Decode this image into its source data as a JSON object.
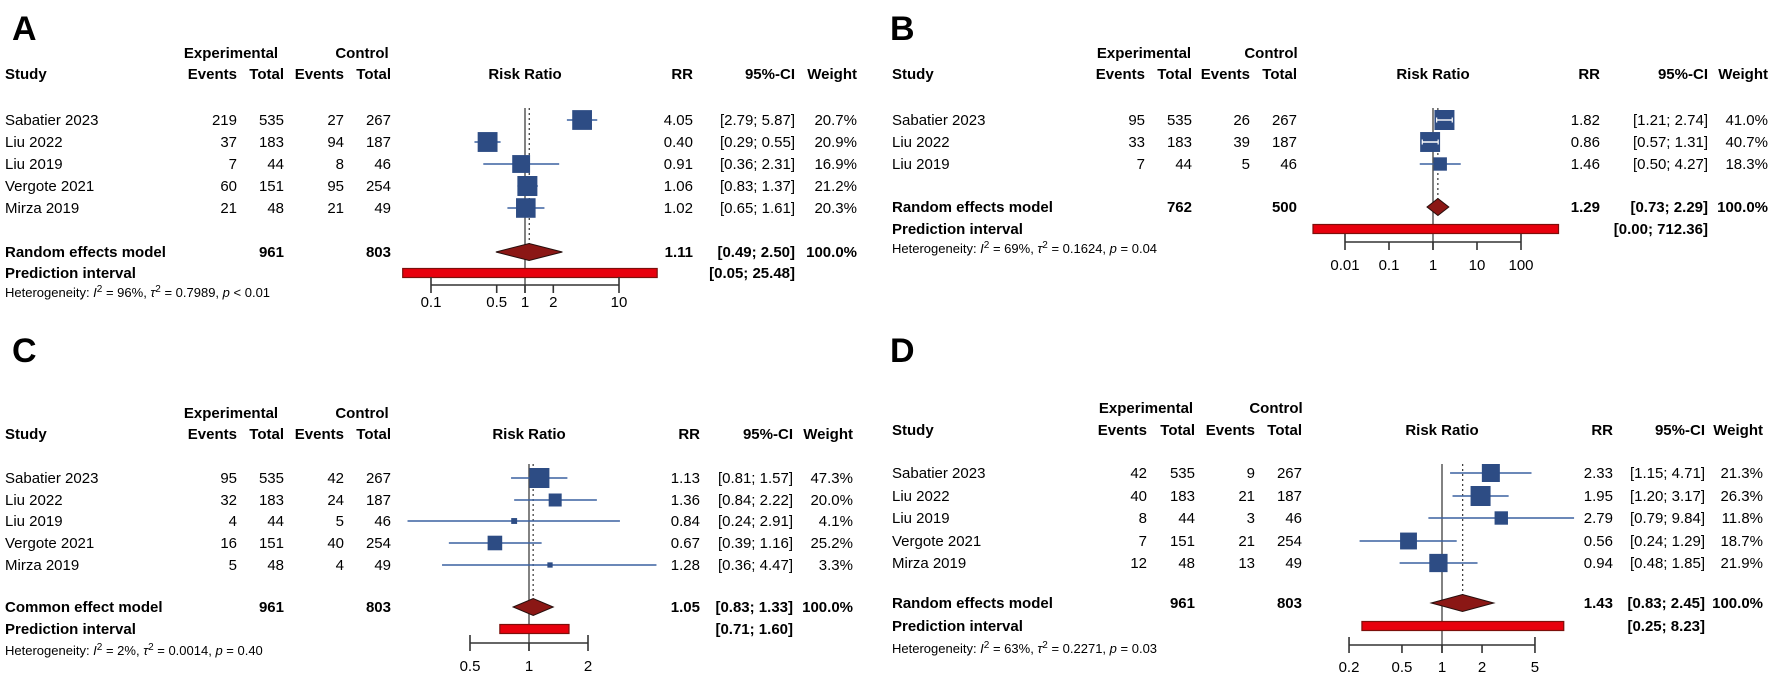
{
  "figure": {
    "background": "#ffffff"
  },
  "colors": {
    "square": "#2d4c84",
    "ci_line": "#3a61a0",
    "inner_ci_line": "#ffffff",
    "diamond_fill": "#8b1715",
    "diamond_stroke": "#260f0d",
    "prediction_fill": "#e8000d",
    "prediction_stroke": "#7c0f0b",
    "null_line": "#4d4d4d",
    "pooled_line": "#333333",
    "axis": "#333333",
    "text": "#000000"
  },
  "chart_data": {
    "type": "forest",
    "effect_measure": "Risk Ratio",
    "headers": {
      "study": "Study",
      "group1": "Experimental",
      "group2": "Control",
      "events": "Events",
      "total": "Total",
      "plot_title": "Risk Ratio",
      "rr": "RR",
      "ci": "95%-CI",
      "weight": "Weight",
      "heterogeneity_prefix": "Heterogeneity:",
      "prediction_label": "Prediction interval"
    },
    "panels": [
      {
        "id": "A",
        "summary_label": "Random effects model",
        "studies": [
          {
            "name": "Sabatier 2023",
            "exp_events": 219,
            "exp_total": 535,
            "ctrl_events": 27,
            "ctrl_total": 267,
            "rr": 4.05,
            "lo": 2.79,
            "hi": 5.87,
            "weight": 20.7
          },
          {
            "name": "Liu 2022",
            "exp_events": 37,
            "exp_total": 183,
            "ctrl_events": 94,
            "ctrl_total": 187,
            "rr": 0.4,
            "lo": 0.29,
            "hi": 0.55,
            "weight": 20.9
          },
          {
            "name": "Liu 2019",
            "exp_events": 7,
            "exp_total": 44,
            "ctrl_events": 8,
            "ctrl_total": 46,
            "rr": 0.91,
            "lo": 0.36,
            "hi": 2.31,
            "weight": 16.9
          },
          {
            "name": "Vergote 2021",
            "exp_events": 60,
            "exp_total": 151,
            "ctrl_events": 95,
            "ctrl_total": 254,
            "rr": 1.06,
            "lo": 0.83,
            "hi": 1.37,
            "weight": 21.2
          },
          {
            "name": "Mirza 2019",
            "exp_events": 21,
            "exp_total": 48,
            "ctrl_events": 21,
            "ctrl_total": 49,
            "rr": 1.02,
            "lo": 0.65,
            "hi": 1.61,
            "weight": 20.3
          }
        ],
        "summary": {
          "exp_total": 961,
          "ctrl_total": 803,
          "rr": 1.11,
          "lo": 0.49,
          "hi": 2.5,
          "weight": 100.0
        },
        "prediction": {
          "lo": 0.05,
          "hi": 25.48
        },
        "heterogeneity": {
          "i2": "96%",
          "tau2": "0.7989",
          "p": "< 0.01"
        },
        "axis_ticks": [
          0.1,
          0.5,
          1,
          2,
          10
        ]
      },
      {
        "id": "B",
        "summary_label": "Random effects model",
        "studies": [
          {
            "name": "Sabatier 2023",
            "exp_events": 95,
            "exp_total": 535,
            "ctrl_events": 26,
            "ctrl_total": 267,
            "rr": 1.82,
            "lo": 1.21,
            "hi": 2.74,
            "weight": 41.0
          },
          {
            "name": "Liu 2022",
            "exp_events": 33,
            "exp_total": 183,
            "ctrl_events": 39,
            "ctrl_total": 187,
            "rr": 0.86,
            "lo": 0.57,
            "hi": 1.31,
            "weight": 40.7
          },
          {
            "name": "Liu 2019",
            "exp_events": 7,
            "exp_total": 44,
            "ctrl_events": 5,
            "ctrl_total": 46,
            "rr": 1.46,
            "lo": 0.5,
            "hi": 4.27,
            "weight": 18.3
          }
        ],
        "summary": {
          "exp_total": 762,
          "ctrl_total": 500,
          "rr": 1.29,
          "lo": 0.73,
          "hi": 2.29,
          "weight": 100.0
        },
        "prediction": {
          "lo": 0.0,
          "hi": 712.36
        },
        "heterogeneity": {
          "i2": "69%",
          "tau2": "0.1624",
          "p": "= 0.04"
        },
        "axis_ticks": [
          0.01,
          0.1,
          1,
          10,
          100
        ]
      },
      {
        "id": "C",
        "summary_label": "Common effect model",
        "studies": [
          {
            "name": "Sabatier 2023",
            "exp_events": 95,
            "exp_total": 535,
            "ctrl_events": 42,
            "ctrl_total": 267,
            "rr": 1.13,
            "lo": 0.81,
            "hi": 1.57,
            "weight": 47.3
          },
          {
            "name": "Liu 2022",
            "exp_events": 32,
            "exp_total": 183,
            "ctrl_events": 24,
            "ctrl_total": 187,
            "rr": 1.36,
            "lo": 0.84,
            "hi": 2.22,
            "weight": 20.0
          },
          {
            "name": "Liu 2019",
            "exp_events": 4,
            "exp_total": 44,
            "ctrl_events": 5,
            "ctrl_total": 46,
            "rr": 0.84,
            "lo": 0.24,
            "hi": 2.91,
            "weight": 4.1
          },
          {
            "name": "Vergote 2021",
            "exp_events": 16,
            "exp_total": 151,
            "ctrl_events": 40,
            "ctrl_total": 254,
            "rr": 0.67,
            "lo": 0.39,
            "hi": 1.16,
            "weight": 25.2
          },
          {
            "name": "Mirza 2019",
            "exp_events": 5,
            "exp_total": 48,
            "ctrl_events": 4,
            "ctrl_total": 49,
            "rr": 1.28,
            "lo": 0.36,
            "hi": 4.47,
            "weight": 3.3
          }
        ],
        "summary": {
          "exp_total": 961,
          "ctrl_total": 803,
          "rr": 1.05,
          "lo": 0.83,
          "hi": 1.33,
          "weight": 100.0
        },
        "prediction": {
          "lo": 0.71,
          "hi": 1.6
        },
        "heterogeneity": {
          "i2": "2%",
          "tau2": "0.0014",
          "p": "= 0.40"
        },
        "axis_ticks": [
          0.5,
          1,
          2
        ]
      },
      {
        "id": "D",
        "summary_label": "Random effects model",
        "studies": [
          {
            "name": "Sabatier 2023",
            "exp_events": 42,
            "exp_total": 535,
            "ctrl_events": 9,
            "ctrl_total": 267,
            "rr": 2.33,
            "lo": 1.15,
            "hi": 4.71,
            "weight": 21.3
          },
          {
            "name": "Liu 2022",
            "exp_events": 40,
            "exp_total": 183,
            "ctrl_events": 21,
            "ctrl_total": 187,
            "rr": 1.95,
            "lo": 1.2,
            "hi": 3.17,
            "weight": 26.3
          },
          {
            "name": "Liu 2019",
            "exp_events": 8,
            "exp_total": 44,
            "ctrl_events": 3,
            "ctrl_total": 46,
            "rr": 2.79,
            "lo": 0.79,
            "hi": 9.84,
            "weight": 11.8
          },
          {
            "name": "Vergote 2021",
            "exp_events": 7,
            "exp_total": 151,
            "ctrl_events": 21,
            "ctrl_total": 254,
            "rr": 0.56,
            "lo": 0.24,
            "hi": 1.29,
            "weight": 18.7
          },
          {
            "name": "Mirza 2019",
            "exp_events": 12,
            "exp_total": 48,
            "ctrl_events": 13,
            "ctrl_total": 49,
            "rr": 0.94,
            "lo": 0.48,
            "hi": 1.85,
            "weight": 21.9
          }
        ],
        "summary": {
          "exp_total": 961,
          "ctrl_total": 803,
          "rr": 1.43,
          "lo": 0.83,
          "hi": 2.45,
          "weight": 100.0
        },
        "prediction": {
          "lo": 0.25,
          "hi": 8.23
        },
        "heterogeneity": {
          "i2": "63%",
          "tau2": "0.2271",
          "p": "= 0.03"
        },
        "axis_ticks": [
          0.2,
          0.5,
          1,
          2,
          5
        ]
      }
    ]
  }
}
